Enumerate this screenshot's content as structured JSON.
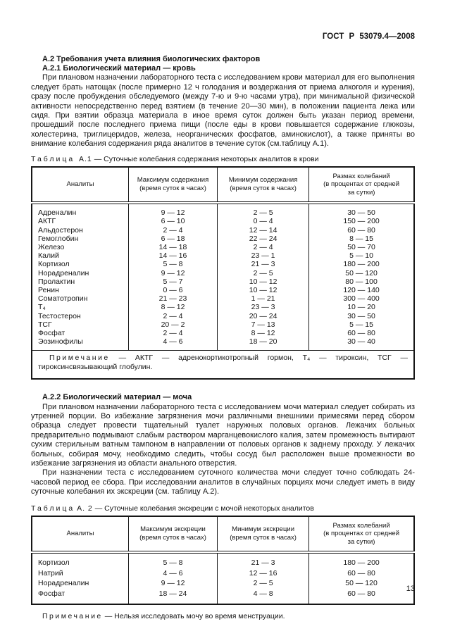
{
  "doc": {
    "header": "ГОСТ Р 53079.4—2008",
    "page_number": "13"
  },
  "sections": {
    "a2_heading": "А.2 Требования учета влияния биологических факторов",
    "a21_heading": "А.2.1 Биологический материал — кровь",
    "a21_para": "При плановом назначении лабораторного теста с исследованием крови материал для его выполнения следует брать натощак (после примерно 12 ч голодания и воздержания от приема алкоголя и курения), сразу после пробуждения обследуемого (между 7-ю и 9-ю часами утра), при минимальной физической активности непосредственно перед взятием (в течение 20—30 мин), в положении пациента лежа или сидя. При взятии образца материала в иное время суток должен быть указан период времени, прошедший после последнего приема пищи (после еды в крови повышается содержание глюкозы, холестерина, триглицеридов, железа, неорганических фосфатов, аминокислот), а также приняты во внимание колебания содержания ряда аналитов в течение суток (см.таблицу А.1).",
    "a22_heading": "А.2.2 Биологический материал — моча",
    "a22_para1": "При плановом назначении лабораторного теста с исследованием мочи материал следует собирать из утренней порции. Во избежание загрязнения мочи различными внешними примесями перед сбором образца следует провести тщательный туалет наружных половых органов. Лежачих больных предварительно подмывают слабым раствором марганцевокислого калия, затем промежность вытирают сухим стерильным ватным тампоном в направлении от половых органов к заднему проходу. У лежачих больных, собирая мочу, необходимо следить, чтобы сосуд был расположен выше промежности во избежание загрязнения из области анального отверстия.",
    "a22_para2": "При назначении теста с исследованием суточного количества мочи следует точно соблюдать 24-часовой период ее сбора. При исследовании аналитов в случайных порциях мочи следует иметь в виду суточные колебания их экскреции (см. таблицу А.2)."
  },
  "table1": {
    "caption_word": "Таблица",
    "caption_label": "А.1",
    "caption_dash": "—",
    "caption_text": "Суточные колебания содержания некоторых аналитов в крови",
    "headers": [
      "Аналиты",
      "Максимум содержания\n(время суток в часах)",
      "Минимум содержания\n(время суток в часах)",
      "Размах колебаний\n(в процентах от средней\nза сутки)"
    ],
    "rows": [
      [
        "Адреналин",
        "9 — 12",
        "2 — 5",
        "30 — 50"
      ],
      [
        "АКТГ",
        "6 — 10",
        "0 — 4",
        "150 — 200"
      ],
      [
        "Альдостерон",
        "2 — 4",
        "12 — 14",
        "60 — 80"
      ],
      [
        "Гемоглобин",
        "6 — 18",
        "22 — 24",
        "8 — 15"
      ],
      [
        "Железо",
        "14 — 18",
        "2 — 4",
        "50 — 70"
      ],
      [
        "Калий",
        "14 — 16",
        "23 — 1",
        "5 — 10"
      ],
      [
        "Кортизол",
        "5 — 8",
        "21 — 3",
        "180 — 200"
      ],
      [
        "Норадреналин",
        "9 — 12",
        "2 — 5",
        "50 — 120"
      ],
      [
        "Пролактин",
        "5 — 7",
        "10 — 12",
        "80 — 100"
      ],
      [
        "Ренин",
        "0 — 6",
        "10 — 12",
        "120 — 140"
      ],
      [
        "Соматотропин",
        "21 — 23",
        "1 — 21",
        "300 — 400"
      ],
      [
        "Т₄",
        "8 — 12",
        "23 — 3",
        "10 — 20"
      ],
      [
        "Тестостерон",
        "2 — 4",
        "20 — 24",
        "30 — 50"
      ],
      [
        "ТСГ",
        "20 — 2",
        "7 — 13",
        "5 — 15"
      ],
      [
        "Фосфат",
        "2 — 4",
        "8 — 12",
        "60 — 80"
      ],
      [
        "Эозинофилы",
        "4 — 6",
        "18 — 20",
        "30 — 40"
      ]
    ],
    "note_label": "Примечание",
    "note_text": " — АКТГ — адренокортикотропный гормон, Т₄ — тироксин, ТСГ — тироксинсвязывающий глобулин."
  },
  "table2": {
    "caption_word": "Таблица",
    "caption_label": "А. 2",
    "caption_dash": "—",
    "caption_text": "Суточные колебания экскреции с мочой некоторых аналитов",
    "headers": [
      "Аналиты",
      "Максимум экскреции\n(время суток в часах)",
      "Минимум экскреции\n(время суток в часах)",
      "Размах колебаний\n(в процентах от средней\nза сутки)"
    ],
    "rows": [
      [
        "Кортизол",
        "5 — 8",
        "21 — 3",
        "180 — 200"
      ],
      [
        "Натрий",
        "4 — 6",
        "12 — 16",
        "60 — 80"
      ],
      [
        "Норадреналин",
        "9 — 12",
        "2 — 5",
        "50 — 120"
      ],
      [
        "Фосфат",
        "18 — 24",
        "4 — 8",
        "60 — 80"
      ]
    ],
    "note_label": "Примечание",
    "note_text": " — Нельзя исследовать мочу во время менструации."
  }
}
